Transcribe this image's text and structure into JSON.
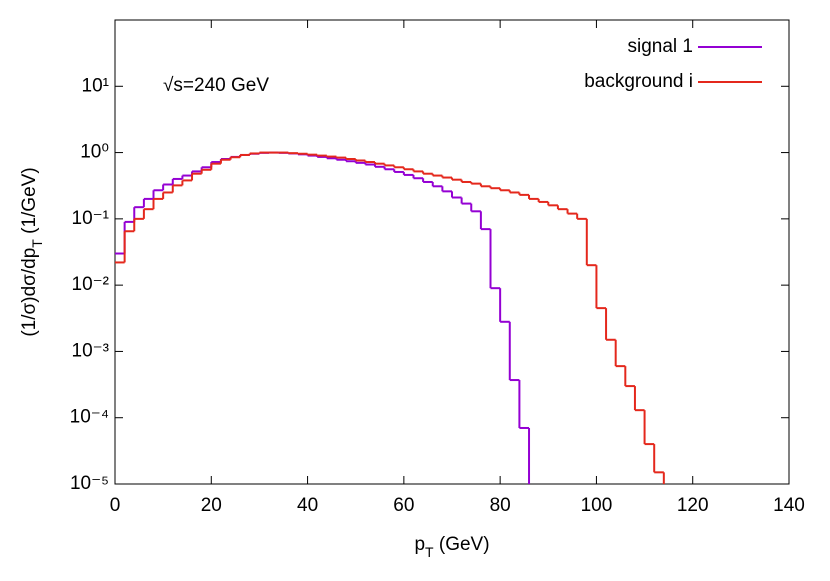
{
  "chart_data": {
    "type": "step-histogram",
    "annotation": "√s=240 GeV",
    "xlabel": [
      {
        "text": "p"
      },
      {
        "text": "T",
        "sub": true
      },
      {
        "text": " (GeV)"
      }
    ],
    "ylabel": [
      {
        "text": "(1/σ)dσ/dp"
      },
      {
        "text": "T",
        "sub": true
      },
      {
        "text": " (1/GeV)"
      }
    ],
    "log_y": true,
    "legend": "top-right",
    "xlim": [
      0,
      140
    ],
    "xticks": [
      0,
      20,
      40,
      60,
      80,
      100,
      120,
      140
    ],
    "ylim": [
      1e-05,
      100
    ],
    "yticks": [
      {
        "value": 1e-05,
        "label": "10⁻⁵"
      },
      {
        "value": 0.0001,
        "label": "10⁻⁴"
      },
      {
        "value": 0.001,
        "label": "10⁻³"
      },
      {
        "value": 0.01,
        "label": "10⁻²"
      },
      {
        "value": 0.1,
        "label": "10⁻¹"
      },
      {
        "value": 1,
        "label": "10⁰"
      },
      {
        "value": 10,
        "label": "10¹"
      }
    ],
    "bins": [
      0,
      2,
      4,
      6,
      8,
      10,
      12,
      14,
      16,
      18,
      20,
      22,
      24,
      26,
      28,
      30,
      32,
      34,
      36,
      38,
      40,
      42,
      44,
      46,
      48,
      50,
      52,
      54,
      56,
      58,
      60,
      62,
      64,
      66,
      68,
      70,
      72,
      74,
      76,
      78,
      80,
      82,
      84,
      86,
      88,
      90,
      92,
      94,
      96,
      98,
      100,
      102,
      104,
      106,
      108,
      110,
      112,
      114,
      116
    ],
    "series": [
      {
        "name": "signal 1",
        "color": "#9400d3",
        "values": [
          0.03,
          0.09,
          0.15,
          0.2,
          0.27,
          0.33,
          0.4,
          0.45,
          0.52,
          0.6,
          0.72,
          0.8,
          0.86,
          0.92,
          0.96,
          0.99,
          1.0,
          0.99,
          0.97,
          0.94,
          0.9,
          0.86,
          0.82,
          0.78,
          0.74,
          0.7,
          0.66,
          0.61,
          0.56,
          0.51,
          0.46,
          0.41,
          0.36,
          0.31,
          0.26,
          0.21,
          0.17,
          0.13,
          0.07,
          0.009,
          0.0028,
          0.00037,
          7e-05,
          null,
          null,
          null,
          null,
          null,
          null,
          null,
          null,
          null,
          null,
          null,
          null,
          null,
          null,
          null
        ]
      },
      {
        "name": "background i",
        "color": "#e4281c",
        "values": [
          0.022,
          0.065,
          0.1,
          0.14,
          0.2,
          0.25,
          0.32,
          0.38,
          0.48,
          0.55,
          0.68,
          0.78,
          0.85,
          0.92,
          0.97,
          1.0,
          1.0,
          1.0,
          0.98,
          0.96,
          0.93,
          0.9,
          0.87,
          0.84,
          0.8,
          0.76,
          0.72,
          0.68,
          0.64,
          0.6,
          0.56,
          0.52,
          0.48,
          0.45,
          0.42,
          0.39,
          0.36,
          0.34,
          0.31,
          0.29,
          0.27,
          0.25,
          0.23,
          0.2,
          0.18,
          0.16,
          0.14,
          0.12,
          0.1,
          0.02,
          0.0045,
          0.0015,
          0.0006,
          0.0003,
          0.00013,
          4e-05,
          1.5e-05,
          null
        ]
      }
    ]
  }
}
